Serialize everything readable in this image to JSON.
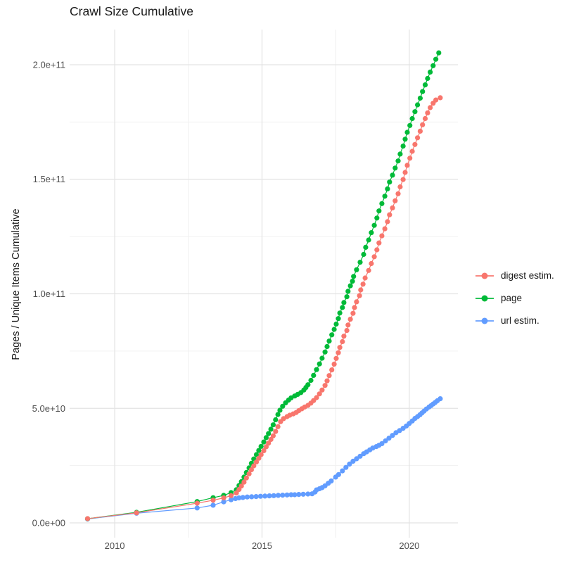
{
  "title": "Crawl Size Cumulative",
  "chart_data": {
    "type": "scatter",
    "title": "Crawl Size Cumulative",
    "xlabel": "",
    "ylabel": "Pages / Unique Items Cumulative",
    "grid": true,
    "legend_position": "right",
    "background": "#ffffff",
    "grid_major_color": "#e3e3e3",
    "grid_minor_color": "#f0f0f0",
    "xlim": [
      2008.47,
      2021.65
    ],
    "ylim_e9": [
      -6.45,
      215.36
    ],
    "x_ticks": [
      2010,
      2015,
      2020
    ],
    "x_tick_labels": [
      "2010",
      "2015",
      "2020"
    ],
    "x_minor_ticks": [
      2012.5,
      2017.5
    ],
    "y_ticks_e9": [
      0,
      50,
      100,
      150,
      200
    ],
    "y_tick_labels": [
      "0.0e+00",
      "5.0e+10",
      "1.0e+11",
      "1.5e+11",
      "2.0e+11"
    ],
    "y_minor_ticks_e9": [
      25,
      75,
      125,
      175
    ],
    "value_units": "items, values listed in billions (1e9)",
    "series": [
      {
        "name": "digest estim.",
        "color": "#F8766D",
        "points": [
          [
            2009.08,
            1.85
          ],
          [
            2010.74,
            4.4
          ],
          [
            2012.8,
            8.6
          ],
          [
            2013.34,
            9.9
          ],
          [
            2013.7,
            10.9
          ],
          [
            2013.95,
            11.9
          ],
          [
            2014.13,
            13.1
          ],
          [
            2014.22,
            14.6
          ],
          [
            2014.3,
            16.1
          ],
          [
            2014.39,
            17.8
          ],
          [
            2014.47,
            19.6
          ],
          [
            2014.56,
            21.4
          ],
          [
            2014.64,
            23.2
          ],
          [
            2014.72,
            24.9
          ],
          [
            2014.81,
            26.6
          ],
          [
            2014.89,
            28.2
          ],
          [
            2014.97,
            29.8
          ],
          [
            2015.06,
            31.5
          ],
          [
            2015.14,
            33.2
          ],
          [
            2015.22,
            34.8
          ],
          [
            2015.3,
            36.4
          ],
          [
            2015.38,
            38.0
          ],
          [
            2015.46,
            39.9
          ],
          [
            2015.54,
            42.0
          ],
          [
            2015.63,
            44.2
          ],
          [
            2015.73,
            45.5
          ],
          [
            2015.85,
            46.4
          ],
          [
            2015.94,
            47.0
          ],
          [
            2016.06,
            47.6
          ],
          [
            2016.16,
            48.2
          ],
          [
            2016.25,
            49.0
          ],
          [
            2016.35,
            49.8
          ],
          [
            2016.45,
            50.6
          ],
          [
            2016.56,
            51.3
          ],
          [
            2016.66,
            52.3
          ],
          [
            2016.75,
            53.4
          ],
          [
            2016.85,
            54.7
          ],
          [
            2016.95,
            56.3
          ],
          [
            2017.04,
            58.0
          ],
          [
            2017.14,
            60.0
          ],
          [
            2017.21,
            62.0
          ],
          [
            2017.28,
            64.3
          ],
          [
            2017.37,
            66.8
          ],
          [
            2017.45,
            69.3
          ],
          [
            2017.52,
            71.8
          ],
          [
            2017.59,
            74.3
          ],
          [
            2017.64,
            76.6
          ],
          [
            2017.73,
            79.1
          ],
          [
            2017.78,
            81.5
          ],
          [
            2017.88,
            84.0
          ],
          [
            2017.92,
            86.4
          ],
          [
            2018.0,
            88.9
          ],
          [
            2018.09,
            91.5
          ],
          [
            2018.14,
            94.0
          ],
          [
            2018.21,
            96.5
          ],
          [
            2018.31,
            99.2
          ],
          [
            2018.35,
            101.7
          ],
          [
            2018.43,
            104.2
          ],
          [
            2018.5,
            106.9
          ],
          [
            2018.62,
            110.2
          ],
          [
            2018.71,
            113.2
          ],
          [
            2018.81,
            116.2
          ],
          [
            2018.9,
            119.2
          ],
          [
            2018.97,
            122.2
          ],
          [
            2019.07,
            125.3
          ],
          [
            2019.17,
            128.4
          ],
          [
            2019.26,
            131.5
          ],
          [
            2019.33,
            134.5
          ],
          [
            2019.43,
            137.5
          ],
          [
            2019.52,
            140.6
          ],
          [
            2019.62,
            143.7
          ],
          [
            2019.69,
            146.7
          ],
          [
            2019.79,
            149.9
          ],
          [
            2019.86,
            153.0
          ],
          [
            2019.93,
            156.1
          ],
          [
            2020.02,
            159.2
          ],
          [
            2020.1,
            162.2
          ],
          [
            2020.19,
            165.2
          ],
          [
            2020.28,
            168.1
          ],
          [
            2020.37,
            171.0
          ],
          [
            2020.45,
            173.8
          ],
          [
            2020.54,
            176.5
          ],
          [
            2020.62,
            179.0
          ],
          [
            2020.71,
            181.3
          ],
          [
            2020.81,
            183.2
          ],
          [
            2020.9,
            184.6
          ],
          [
            2021.05,
            185.6
          ]
        ]
      },
      {
        "name": "page",
        "color": "#00BA38",
        "points": [
          [
            2009.08,
            1.8
          ],
          [
            2010.74,
            4.6
          ],
          [
            2012.8,
            9.3
          ],
          [
            2013.34,
            11.0
          ],
          [
            2013.7,
            12.0
          ],
          [
            2013.95,
            13.2
          ],
          [
            2014.13,
            14.5
          ],
          [
            2014.22,
            16.3
          ],
          [
            2014.3,
            18.0
          ],
          [
            2014.39,
            20.0
          ],
          [
            2014.47,
            22.0
          ],
          [
            2014.56,
            24.0
          ],
          [
            2014.64,
            26.0
          ],
          [
            2014.72,
            27.9
          ],
          [
            2014.81,
            29.8
          ],
          [
            2014.89,
            31.6
          ],
          [
            2014.97,
            33.4
          ],
          [
            2015.06,
            35.3
          ],
          [
            2015.14,
            37.2
          ],
          [
            2015.22,
            39.0
          ],
          [
            2015.3,
            40.9
          ],
          [
            2015.38,
            42.8
          ],
          [
            2015.46,
            45.0
          ],
          [
            2015.54,
            47.3
          ],
          [
            2015.61,
            49.2
          ],
          [
            2015.7,
            50.9
          ],
          [
            2015.8,
            52.4
          ],
          [
            2015.9,
            53.6
          ],
          [
            2015.99,
            54.6
          ],
          [
            2016.11,
            55.4
          ],
          [
            2016.21,
            56.1
          ],
          [
            2016.32,
            56.9
          ],
          [
            2016.42,
            58.0
          ],
          [
            2016.49,
            59.1
          ],
          [
            2016.56,
            60.3
          ],
          [
            2016.66,
            62.2
          ],
          [
            2016.75,
            64.4
          ],
          [
            2016.85,
            66.9
          ],
          [
            2016.95,
            69.4
          ],
          [
            2017.04,
            71.9
          ],
          [
            2017.14,
            74.6
          ],
          [
            2017.21,
            77.0
          ],
          [
            2017.28,
            79.4
          ],
          [
            2017.37,
            82.1
          ],
          [
            2017.45,
            84.5
          ],
          [
            2017.52,
            86.8
          ],
          [
            2017.59,
            89.2
          ],
          [
            2017.64,
            91.6
          ],
          [
            2017.73,
            94.0
          ],
          [
            2017.78,
            96.2
          ],
          [
            2017.88,
            98.7
          ],
          [
            2017.92,
            101.1
          ],
          [
            2018.0,
            103.5
          ],
          [
            2018.07,
            105.5
          ],
          [
            2018.11,
            107.6
          ],
          [
            2018.21,
            110.5
          ],
          [
            2018.33,
            113.8
          ],
          [
            2018.45,
            117.2
          ],
          [
            2018.52,
            120.3
          ],
          [
            2018.62,
            123.5
          ],
          [
            2018.71,
            126.7
          ],
          [
            2018.81,
            129.9
          ],
          [
            2018.9,
            133.1
          ],
          [
            2018.97,
            136.2
          ],
          [
            2019.07,
            139.4
          ],
          [
            2019.17,
            142.6
          ],
          [
            2019.26,
            145.8
          ],
          [
            2019.33,
            148.8
          ],
          [
            2019.43,
            151.8
          ],
          [
            2019.52,
            154.9
          ],
          [
            2019.62,
            158.0
          ],
          [
            2019.69,
            161.0
          ],
          [
            2019.79,
            164.5
          ],
          [
            2019.86,
            167.5
          ],
          [
            2019.93,
            170.5
          ],
          [
            2020.02,
            173.5
          ],
          [
            2020.1,
            176.5
          ],
          [
            2020.19,
            179.5
          ],
          [
            2020.28,
            182.5
          ],
          [
            2020.37,
            185.4
          ],
          [
            2020.45,
            188.3
          ],
          [
            2020.54,
            191.2
          ],
          [
            2020.62,
            194.0
          ],
          [
            2020.71,
            196.8
          ],
          [
            2020.81,
            199.6
          ],
          [
            2020.9,
            202.4
          ],
          [
            2021.0,
            205.2
          ]
        ]
      },
      {
        "name": "url estim.",
        "color": "#619CFF",
        "points": [
          [
            2009.08,
            1.7
          ],
          [
            2010.74,
            4.2
          ],
          [
            2012.8,
            6.5
          ],
          [
            2013.34,
            7.7
          ],
          [
            2013.7,
            9.2
          ],
          [
            2013.95,
            10.1
          ],
          [
            2014.1,
            10.6
          ],
          [
            2014.22,
            10.9
          ],
          [
            2014.35,
            11.1
          ],
          [
            2014.5,
            11.3
          ],
          [
            2014.65,
            11.4
          ],
          [
            2014.8,
            11.5
          ],
          [
            2014.95,
            11.6
          ],
          [
            2015.1,
            11.7
          ],
          [
            2015.25,
            11.8
          ],
          [
            2015.4,
            11.9
          ],
          [
            2015.55,
            12.0
          ],
          [
            2015.7,
            12.1
          ],
          [
            2015.85,
            12.2
          ],
          [
            2015.99,
            12.3
          ],
          [
            2016.11,
            12.3
          ],
          [
            2016.25,
            12.4
          ],
          [
            2016.4,
            12.5
          ],
          [
            2016.56,
            12.6
          ],
          [
            2016.7,
            12.7
          ],
          [
            2016.8,
            13.5
          ],
          [
            2016.85,
            14.4
          ],
          [
            2016.95,
            14.9
          ],
          [
            2017.04,
            15.4
          ],
          [
            2017.14,
            16.2
          ],
          [
            2017.25,
            17.3
          ],
          [
            2017.35,
            18.3
          ],
          [
            2017.5,
            20.0
          ],
          [
            2017.6,
            21.1
          ],
          [
            2017.73,
            22.7
          ],
          [
            2017.85,
            24.2
          ],
          [
            2017.97,
            25.7
          ],
          [
            2018.09,
            26.9
          ],
          [
            2018.21,
            28.0
          ],
          [
            2018.33,
            29.1
          ],
          [
            2018.45,
            30.2
          ],
          [
            2018.55,
            31.0
          ],
          [
            2018.66,
            31.9
          ],
          [
            2018.76,
            32.7
          ],
          [
            2018.88,
            33.3
          ],
          [
            2018.97,
            33.9
          ],
          [
            2019.07,
            34.6
          ],
          [
            2019.19,
            35.8
          ],
          [
            2019.31,
            37.0
          ],
          [
            2019.43,
            38.2
          ],
          [
            2019.55,
            39.4
          ],
          [
            2019.67,
            40.3
          ],
          [
            2019.79,
            41.3
          ],
          [
            2019.9,
            42.3
          ],
          [
            2020.0,
            43.4
          ],
          [
            2020.1,
            44.5
          ],
          [
            2020.19,
            45.6
          ],
          [
            2020.28,
            46.4
          ],
          [
            2020.36,
            47.2
          ],
          [
            2020.43,
            48.0
          ],
          [
            2020.5,
            48.8
          ],
          [
            2020.58,
            49.7
          ],
          [
            2020.67,
            50.6
          ],
          [
            2020.74,
            51.2
          ],
          [
            2020.81,
            51.9
          ],
          [
            2020.88,
            52.6
          ],
          [
            2020.95,
            53.3
          ],
          [
            2021.05,
            54.2
          ]
        ]
      }
    ]
  },
  "legend": {
    "items": [
      {
        "label": "digest estim.",
        "color": "#F8766D"
      },
      {
        "label": "page",
        "color": "#00BA38"
      },
      {
        "label": "url estim.",
        "color": "#619CFF"
      }
    ]
  }
}
